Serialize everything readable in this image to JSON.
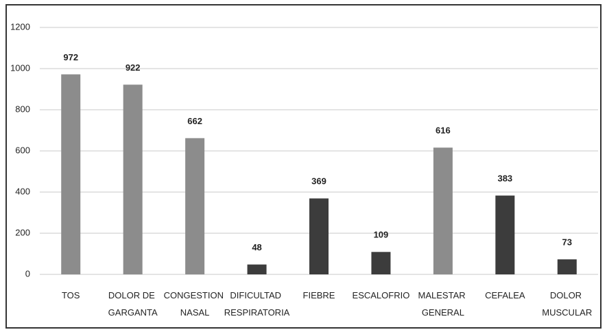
{
  "chart_data": {
    "type": "bar",
    "categories": [
      "TOS",
      "DOLOR DE GARGANTA",
      "CONGESTION NASAL",
      "DIFICULTAD RESPIRATORIA",
      "FIEBRE",
      "ESCALOFRIO",
      "MALESTAR GENERAL",
      "CEFALEA",
      "DOLOR MUSCULAR"
    ],
    "values": [
      972,
      922,
      662,
      48,
      369,
      109,
      616,
      383,
      73
    ],
    "colors": [
      "#8c8c8c",
      "#8c8c8c",
      "#8c8c8c",
      "#3c3c3c",
      "#3c3c3c",
      "#3c3c3c",
      "#8c8c8c",
      "#3c3c3c",
      "#3c3c3c"
    ],
    "ylim": [
      0,
      1200
    ],
    "yticks": [
      0,
      200,
      400,
      600,
      800,
      1000,
      1200
    ],
    "grid": true
  }
}
